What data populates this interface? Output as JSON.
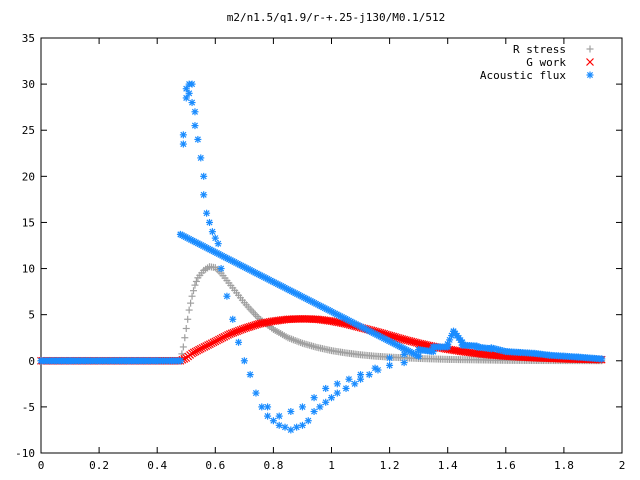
{
  "chart_data": {
    "type": "scatter",
    "title": "m2/n1.5/q1.9/r-+.25-j130/M0.1/512",
    "xlabel": "",
    "ylabel": "",
    "xlim": [
      0,
      2
    ],
    "ylim": [
      -10,
      35
    ],
    "x_ticks": [
      0,
      0.2,
      0.4,
      0.6,
      0.8,
      1,
      1.2,
      1.4,
      1.6,
      1.8,
      2
    ],
    "x_tick_labels": [
      "0",
      "0.2",
      "0.4",
      "0.6",
      "0.8",
      "1",
      "1.2",
      "1.4",
      "1.6",
      "1.8",
      "2"
    ],
    "y_ticks": [
      -10,
      -5,
      0,
      5,
      10,
      15,
      20,
      25,
      30,
      35
    ],
    "y_tick_labels": [
      "-10",
      "-5",
      "0",
      "5",
      "10",
      "15",
      "20",
      "25",
      "30",
      "35"
    ],
    "grid": false,
    "legend_position": "top-right",
    "series": [
      {
        "name": "R stress",
        "marker": "plus",
        "color": "#a0a0a0",
        "points": [
          [
            0.0,
            0
          ],
          [
            0.1,
            0
          ],
          [
            0.2,
            0
          ],
          [
            0.3,
            0
          ],
          [
            0.4,
            0
          ],
          [
            0.48,
            0
          ],
          [
            0.49,
            1.5
          ],
          [
            0.5,
            3.5
          ],
          [
            0.51,
            5.5
          ],
          [
            0.52,
            7.0
          ],
          [
            0.53,
            8.2
          ],
          [
            0.54,
            9.0
          ],
          [
            0.56,
            9.8
          ],
          [
            0.58,
            10.2
          ],
          [
            0.6,
            10.1
          ],
          [
            0.62,
            9.5
          ],
          [
            0.64,
            8.7
          ],
          [
            0.66,
            7.9
          ],
          [
            0.68,
            7.1
          ],
          [
            0.7,
            6.3
          ],
          [
            0.72,
            5.6
          ],
          [
            0.75,
            4.6
          ],
          [
            0.8,
            3.4
          ],
          [
            0.85,
            2.5
          ],
          [
            0.9,
            1.9
          ],
          [
            0.95,
            1.45
          ],
          [
            1.0,
            1.1
          ],
          [
            1.05,
            0.85
          ],
          [
            1.1,
            0.65
          ],
          [
            1.15,
            0.5
          ],
          [
            1.2,
            0.4
          ],
          [
            1.25,
            0.32
          ],
          [
            1.3,
            0.25
          ],
          [
            1.35,
            0.2
          ],
          [
            1.4,
            0.15
          ],
          [
            1.45,
            0.12
          ],
          [
            1.5,
            0.1
          ],
          [
            1.6,
            0.05
          ],
          [
            1.7,
            0.03
          ],
          [
            1.8,
            0.02
          ],
          [
            1.93,
            0.01
          ]
        ]
      },
      {
        "name": "G work",
        "marker": "cross",
        "color": "#ff0000",
        "points": [
          [
            0.0,
            0
          ],
          [
            0.1,
            0
          ],
          [
            0.2,
            0
          ],
          [
            0.3,
            0
          ],
          [
            0.4,
            0
          ],
          [
            0.48,
            0
          ],
          [
            0.5,
            0.3
          ],
          [
            0.52,
            0.8
          ],
          [
            0.55,
            1.3
          ],
          [
            0.6,
            2.1
          ],
          [
            0.65,
            2.9
          ],
          [
            0.7,
            3.5
          ],
          [
            0.75,
            4.0
          ],
          [
            0.8,
            4.3
          ],
          [
            0.85,
            4.5
          ],
          [
            0.9,
            4.55
          ],
          [
            0.95,
            4.5
          ],
          [
            1.0,
            4.3
          ],
          [
            1.05,
            4.0
          ],
          [
            1.1,
            3.6
          ],
          [
            1.15,
            3.2
          ],
          [
            1.2,
            2.75
          ],
          [
            1.25,
            2.3
          ],
          [
            1.3,
            1.9
          ],
          [
            1.35,
            1.55
          ],
          [
            1.4,
            1.25
          ],
          [
            1.45,
            1.0
          ],
          [
            1.5,
            0.8
          ],
          [
            1.55,
            0.62
          ],
          [
            1.6,
            0.5
          ],
          [
            1.65,
            0.4
          ],
          [
            1.7,
            0.32
          ],
          [
            1.75,
            0.26
          ],
          [
            1.8,
            0.2
          ],
          [
            1.85,
            0.16
          ],
          [
            1.93,
            0.12
          ]
        ]
      },
      {
        "name": "Acoustic flux",
        "marker": "star",
        "color": "#1a8cff",
        "points": [
          [
            0.0,
            0
          ],
          [
            0.1,
            0
          ],
          [
            0.2,
            0
          ],
          [
            0.3,
            0
          ],
          [
            0.4,
            0
          ],
          [
            0.48,
            0
          ],
          [
            0.48,
            13.7
          ],
          [
            0.49,
            23.5
          ],
          [
            0.49,
            24.5
          ],
          [
            0.5,
            28.5
          ],
          [
            0.5,
            29.5
          ],
          [
            0.51,
            30.0
          ],
          [
            0.51,
            29.0
          ],
          [
            0.52,
            30.0
          ],
          [
            0.52,
            28.0
          ],
          [
            0.53,
            27.0
          ],
          [
            0.53,
            25.5
          ],
          [
            0.54,
            24.0
          ],
          [
            0.55,
            22.0
          ],
          [
            0.56,
            20.0
          ],
          [
            0.56,
            18.0
          ],
          [
            0.57,
            16.0
          ],
          [
            0.58,
            15.0
          ],
          [
            0.59,
            14.0
          ],
          [
            0.6,
            13.3
          ],
          [
            0.61,
            12.7
          ],
          [
            0.62,
            10.0
          ],
          [
            0.64,
            7.0
          ],
          [
            0.66,
            4.5
          ],
          [
            0.68,
            2.0
          ],
          [
            0.7,
            0.0
          ],
          [
            0.72,
            -1.5
          ],
          [
            0.74,
            -3.5
          ],
          [
            0.76,
            -5.0
          ],
          [
            0.78,
            -6.0
          ],
          [
            0.8,
            -6.5
          ],
          [
            0.82,
            -7.0
          ],
          [
            0.84,
            -7.2
          ],
          [
            0.86,
            -7.5
          ],
          [
            0.88,
            -7.2
          ],
          [
            0.9,
            -7.0
          ],
          [
            0.92,
            -6.5
          ],
          [
            0.94,
            -5.5
          ],
          [
            0.96,
            -5.0
          ],
          [
            0.98,
            -4.5
          ],
          [
            1.0,
            -4.0
          ],
          [
            1.02,
            -3.5
          ],
          [
            1.05,
            -3.0
          ],
          [
            1.08,
            -2.5
          ],
          [
            1.1,
            -2.0
          ],
          [
            1.13,
            -1.5
          ],
          [
            1.16,
            -1.0
          ],
          [
            1.2,
            -0.5
          ],
          [
            1.25,
            -0.2
          ],
          [
            1.3,
            0.5
          ],
          [
            1.35,
            1.0
          ],
          [
            1.4,
            1.5
          ],
          [
            1.42,
            3.2
          ],
          [
            1.45,
            2.0
          ],
          [
            1.5,
            1.6
          ],
          [
            1.55,
            1.3
          ],
          [
            1.6,
            1.0
          ],
          [
            1.65,
            0.9
          ],
          [
            1.7,
            0.8
          ],
          [
            1.75,
            0.6
          ],
          [
            1.8,
            0.5
          ],
          [
            1.85,
            0.4
          ],
          [
            1.93,
            0.2
          ],
          [
            0.78,
            -5.0
          ],
          [
            0.82,
            -6.0
          ],
          [
            0.86,
            -5.5
          ],
          [
            0.9,
            -5.0
          ],
          [
            0.94,
            -4.0
          ],
          [
            0.98,
            -3.0
          ],
          [
            1.02,
            -2.5
          ],
          [
            1.06,
            -2.0
          ],
          [
            1.1,
            -1.5
          ],
          [
            1.15,
            -0.8
          ],
          [
            1.2,
            0.3
          ],
          [
            1.25,
            0.7
          ],
          [
            1.3,
            1.2
          ],
          [
            1.35,
            1.5
          ],
          [
            1.4,
            1.8
          ],
          [
            1.45,
            1.7
          ],
          [
            1.5,
            1.5
          ],
          [
            1.55,
            1.4
          ]
        ]
      }
    ]
  }
}
